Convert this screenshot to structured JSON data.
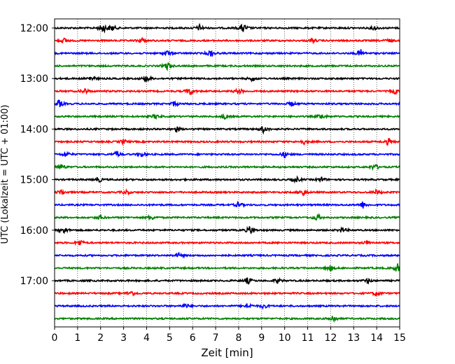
{
  "chart_data": {
    "type": "line",
    "title": "",
    "xlabel": "Zeit  [min]",
    "ylabel": "UTC (Lokalzeit = UTC + 01:00)",
    "xlim": [
      0,
      15
    ],
    "xticks": [
      0,
      1,
      2,
      3,
      4,
      5,
      6,
      7,
      8,
      9,
      10,
      11,
      12,
      13,
      14,
      15
    ],
    "yticks": [
      "12:00",
      "13:00",
      "14:00",
      "15:00",
      "16:00",
      "17:00"
    ],
    "grid_x": "dotted",
    "start_time": "12:00",
    "trace_interval_min": 15,
    "trace_count": 24,
    "trace_colors": [
      "#000000",
      "#ff0000",
      "#0000ff",
      "#008000"
    ],
    "series": [
      {
        "start": "12:00",
        "color": "#000000",
        "events": [
          [
            2.1,
            1.0
          ],
          [
            2.5,
            0.7
          ],
          [
            6.3,
            0.6
          ],
          [
            8.2,
            1.0
          ],
          [
            13.9,
            0.5
          ]
        ]
      },
      {
        "start": "12:15",
        "color": "#ff0000",
        "events": [
          [
            0.4,
            0.5
          ],
          [
            3.8,
            0.6
          ],
          [
            11.2,
            0.4
          ],
          [
            14.5,
            0.4
          ]
        ]
      },
      {
        "start": "12:30",
        "color": "#0000ff",
        "events": [
          [
            4.9,
            0.5
          ],
          [
            6.8,
            0.8
          ],
          [
            13.3,
            0.8
          ]
        ]
      },
      {
        "start": "12:45",
        "color": "#008000",
        "events": [
          [
            4.9,
            0.8
          ]
        ]
      },
      {
        "start": "13:00",
        "color": "#000000",
        "events": [
          [
            1.6,
            0.6
          ],
          [
            4.0,
            0.7
          ],
          [
            8.6,
            0.5
          ]
        ]
      },
      {
        "start": "13:15",
        "color": "#ff0000",
        "events": [
          [
            1.3,
            0.6
          ],
          [
            5.9,
            0.8
          ],
          [
            8.0,
            0.6
          ],
          [
            14.8,
            0.5
          ]
        ]
      },
      {
        "start": "13:30",
        "color": "#0000ff",
        "events": [
          [
            0.2,
            0.8
          ],
          [
            5.2,
            0.5
          ],
          [
            10.3,
            0.5
          ]
        ]
      },
      {
        "start": "13:45",
        "color": "#008000",
        "events": [
          [
            4.4,
            0.5
          ],
          [
            7.4,
            0.5
          ],
          [
            11.6,
            0.6
          ]
        ]
      },
      {
        "start": "14:00",
        "color": "#000000",
        "events": [
          [
            5.3,
            0.6
          ],
          [
            9.1,
            0.8
          ]
        ]
      },
      {
        "start": "14:15",
        "color": "#ff0000",
        "events": [
          [
            3.0,
            0.5
          ],
          [
            10.8,
            0.6
          ],
          [
            14.5,
            0.7
          ]
        ]
      },
      {
        "start": "14:30",
        "color": "#0000ff",
        "events": [
          [
            0.5,
            0.6
          ],
          [
            2.7,
            0.6
          ],
          [
            3.8,
            0.5
          ],
          [
            10.0,
            0.6
          ]
        ]
      },
      {
        "start": "14:45",
        "color": "#008000",
        "events": [
          [
            0.3,
            0.6
          ],
          [
            13.9,
            0.7
          ]
        ]
      },
      {
        "start": "15:00",
        "color": "#000000",
        "events": [
          [
            1.9,
            0.6
          ],
          [
            10.5,
            0.6
          ],
          [
            11.6,
            0.5
          ]
        ]
      },
      {
        "start": "15:15",
        "color": "#ff0000",
        "events": [
          [
            0.3,
            0.6
          ],
          [
            3.1,
            0.5
          ],
          [
            10.8,
            0.8
          ],
          [
            14.0,
            0.5
          ]
        ]
      },
      {
        "start": "15:30",
        "color": "#0000ff",
        "events": [
          [
            8.0,
            0.6
          ],
          [
            13.4,
            0.7
          ]
        ]
      },
      {
        "start": "15:45",
        "color": "#008000",
        "events": [
          [
            2.0,
            0.5
          ],
          [
            4.2,
            0.5
          ],
          [
            11.4,
            0.7
          ]
        ]
      },
      {
        "start": "16:00",
        "color": "#000000",
        "events": [
          [
            0.4,
            0.8
          ],
          [
            8.5,
            0.9
          ],
          [
            12.5,
            0.6
          ]
        ]
      },
      {
        "start": "16:15",
        "color": "#ff0000",
        "events": [
          [
            1.1,
            0.7
          ],
          [
            13.6,
            0.5
          ]
        ]
      },
      {
        "start": "16:30",
        "color": "#0000ff",
        "events": [
          [
            5.4,
            0.5
          ]
        ]
      },
      {
        "start": "16:45",
        "color": "#008000",
        "events": [
          [
            12.0,
            0.6
          ],
          [
            14.9,
            0.9
          ]
        ]
      },
      {
        "start": "17:00",
        "color": "#000000",
        "events": [
          [
            8.4,
            0.7
          ],
          [
            9.7,
            0.5
          ],
          [
            13.6,
            0.5
          ]
        ]
      },
      {
        "start": "17:15",
        "color": "#ff0000",
        "events": [
          [
            3.3,
            0.7
          ],
          [
            14.0,
            0.6
          ]
        ]
      },
      {
        "start": "17:30",
        "color": "#0000ff",
        "events": [
          [
            5.7,
            0.5
          ],
          [
            8.4,
            0.6
          ],
          [
            9.1,
            0.5
          ]
        ]
      },
      {
        "start": "17:45",
        "color": "#008000",
        "events": [
          [
            12.1,
            0.8
          ]
        ]
      }
    ]
  }
}
